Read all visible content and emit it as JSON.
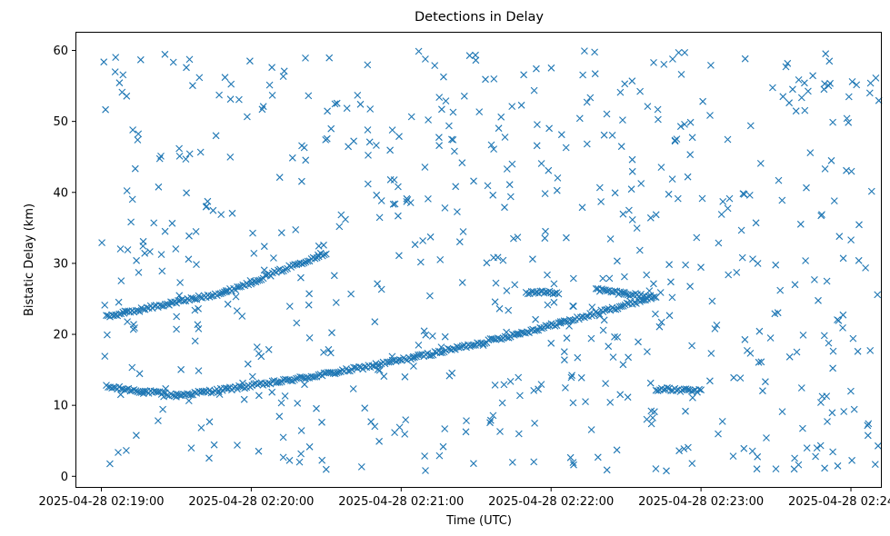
{
  "chart_data": {
    "type": "scatter",
    "title": "Detections in Delay",
    "xlabel": "Time (UTC)",
    "ylabel": "Bistatic Delay (km)",
    "marker": "x",
    "marker_color": "#1f77b4",
    "x_type": "datetime",
    "x_tick_labels": [
      "2025-04-28 02:19:00",
      "2025-04-28 02:20:00",
      "2025-04-28 02:21:00",
      "2025-04-28 02:22:00",
      "2025-04-28 02:23:00",
      "2025-04-28 02:24:00"
    ],
    "x_ticks": [
      "2025-04-28T02:19:00",
      "2025-04-28T02:20:00",
      "2025-04-28T02:21:00",
      "2025-04-28T02:22:00",
      "2025-04-28T02:23:00",
      "2025-04-28T02:24:00"
    ],
    "xlim": [
      "2025-04-28T02:18:50",
      "2025-04-28T02:24:12"
    ],
    "y_ticks": [
      0,
      10,
      20,
      30,
      40,
      50,
      60
    ],
    "ylim": [
      -1.5,
      62.5
    ],
    "grid": false,
    "tracks": [
      {
        "start": "2025-04-28T02:19:02",
        "end": "2025-04-28T02:19:30",
        "delay_start": 12.6,
        "delay_end": 11.4,
        "curve": 0.0
      },
      {
        "start": "2025-04-28T02:19:30",
        "end": "2025-04-28T02:22:40",
        "delay_start": 11.4,
        "delay_end": 25.2,
        "curve": 0.45
      },
      {
        "start": "2025-04-28T02:19:02",
        "end": "2025-04-28T02:19:50",
        "delay_start": 22.5,
        "delay_end": 26.0,
        "curve": 0.0
      },
      {
        "start": "2025-04-28T02:19:50",
        "end": "2025-04-28T02:20:30",
        "delay_start": 26.0,
        "delay_end": 31.5,
        "curve": 0.0
      },
      {
        "start": "2025-04-28T02:21:50",
        "end": "2025-04-28T02:22:03",
        "delay_start": 25.9,
        "delay_end": 25.9,
        "curve": 0.0
      },
      {
        "start": "2025-04-28T02:22:18",
        "end": "2025-04-28T02:22:42",
        "delay_start": 26.3,
        "delay_end": 25.2,
        "curve": 0.0
      },
      {
        "start": "2025-04-28T02:22:42",
        "end": "2025-04-28T02:23:00",
        "delay_start": 12.3,
        "delay_end": 12.0,
        "curve": 0.0
      }
    ],
    "noise": {
      "count": 640,
      "delay_range": [
        0.5,
        60
      ],
      "start": "2025-04-28T02:19:00",
      "end": "2025-04-28T02:24:12"
    }
  }
}
